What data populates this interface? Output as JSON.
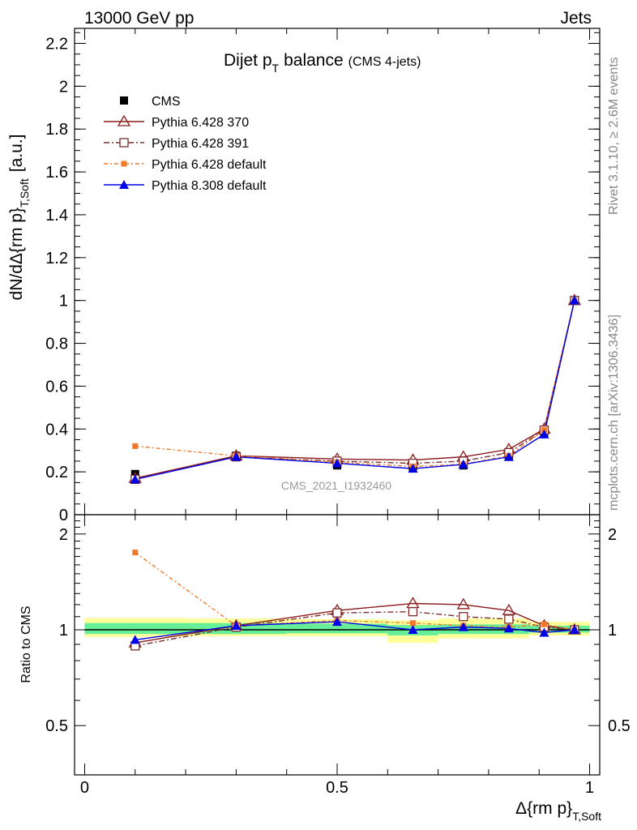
{
  "header": {
    "left": "13000 GeV pp",
    "right": "Jets"
  },
  "plot_title": {
    "main": "Dijet p",
    "main_sub": "T",
    "suffix": "balance",
    "small": "(CMS 4-jets)"
  },
  "watermark": "CMS_2021_I1932460",
  "side_texts": {
    "rivet": "Rivet 3.1.10, ≥ 2.6M events",
    "mcplots": "mcplots.cern.ch [arXiv:1306.3436]"
  },
  "chart_data": [
    {
      "type": "line",
      "panel": "main",
      "ylabel": "dN/dΔ{rm p}",
      "ylabel_sub": "T,Soft",
      "ylabel_unit": "[a.u.]",
      "xlim": [
        -0.02,
        1.02
      ],
      "ylim": [
        0,
        2.27
      ],
      "yticks": [
        0,
        0.2,
        0.4,
        0.6,
        0.8,
        1,
        1.2,
        1.4,
        1.6,
        1.8,
        2,
        2.2
      ],
      "ytick_labels": [
        "0",
        "0.2",
        "0.4",
        "0.6",
        "0.8",
        "1",
        "1.2",
        "1.4",
        "1.6",
        "1.8",
        "2",
        "2.2"
      ],
      "x": [
        0.1,
        0.3,
        0.5,
        0.65,
        0.75,
        0.84,
        0.91,
        0.97
      ],
      "series": [
        {
          "name": "CMS",
          "color": "#000000",
          "values": [
            0.19,
            0.275,
            0.23,
            0.22,
            0.23,
            0.27,
            0.385,
            1.0
          ]
        },
        {
          "name": "Pythia 6.428 370",
          "color": "#8b1a1a",
          "values": [
            0.17,
            0.275,
            0.26,
            0.255,
            0.27,
            0.305,
            0.4,
            1.0
          ]
        },
        {
          "name": "Pythia 6.428 391",
          "color": "#7a3030",
          "values": [
            0.165,
            0.27,
            0.25,
            0.24,
            0.25,
            0.29,
            0.395,
            1.0
          ]
        },
        {
          "name": "Pythia 6.428 default",
          "color": "#f07a2a",
          "values": [
            0.32,
            0.275,
            0.245,
            0.225,
            0.235,
            0.275,
            0.395,
            1.0
          ]
        },
        {
          "name": "Pythia 8.308 default",
          "color": "#0000e6",
          "values": [
            0.165,
            0.27,
            0.24,
            0.215,
            0.235,
            0.27,
            0.375,
            1.0
          ]
        }
      ]
    },
    {
      "type": "line",
      "panel": "ratio",
      "ylabel": "Ratio to CMS",
      "xlabel": "Δ{rm p}",
      "xlabel_sub": "T,Soft",
      "xlim": [
        -0.02,
        1.02
      ],
      "ylim": [
        0.35,
        2.3
      ],
      "ytick_labels_left": [
        "0.5",
        "1",
        "2"
      ],
      "yticks": [
        0.5,
        1,
        2
      ],
      "xticks": [
        0,
        0.5,
        1
      ],
      "xtick_labels": [
        "0",
        "0.5",
        "1"
      ],
      "x": [
        0.1,
        0.3,
        0.5,
        0.65,
        0.75,
        0.84,
        0.91,
        0.97
      ],
      "series": [
        {
          "name": "Pythia 6.428 370",
          "color": "#8b1a1a",
          "values": [
            0.91,
            1.03,
            1.15,
            1.21,
            1.2,
            1.15,
            1.03,
            1.0
          ]
        },
        {
          "name": "Pythia 6.428 391",
          "color": "#7a3030",
          "values": [
            0.89,
            1.02,
            1.13,
            1.14,
            1.1,
            1.08,
            1.02,
            1.0
          ]
        },
        {
          "name": "Pythia 6.428 default",
          "color": "#f07a2a",
          "values": [
            1.75,
            1.03,
            1.07,
            1.05,
            1.03,
            1.02,
            1.04,
            1.0
          ]
        },
        {
          "name": "Pythia 8.308 default",
          "color": "#0000e6",
          "values": [
            0.93,
            1.03,
            1.06,
            1.0,
            1.02,
            1.01,
            0.98,
            1.0
          ]
        }
      ],
      "bands": {
        "yellow": [
          [
            0.0,
            0.2,
            0.95,
            1.09
          ],
          [
            0.2,
            0.4,
            0.955,
            1.085
          ],
          [
            0.4,
            0.6,
            0.955,
            1.08
          ],
          [
            0.6,
            0.7,
            0.91,
            1.07
          ],
          [
            0.7,
            0.88,
            0.94,
            1.085
          ],
          [
            0.88,
            1.0,
            0.96,
            1.06
          ]
        ],
        "green": [
          [
            0.0,
            0.2,
            0.97,
            1.05
          ],
          [
            0.2,
            0.4,
            0.97,
            1.05
          ],
          [
            0.4,
            0.6,
            0.975,
            1.045
          ],
          [
            0.6,
            0.7,
            0.96,
            1.035
          ],
          [
            0.7,
            0.88,
            0.97,
            1.04
          ],
          [
            0.88,
            1.0,
            0.98,
            1.03
          ]
        ]
      }
    }
  ]
}
